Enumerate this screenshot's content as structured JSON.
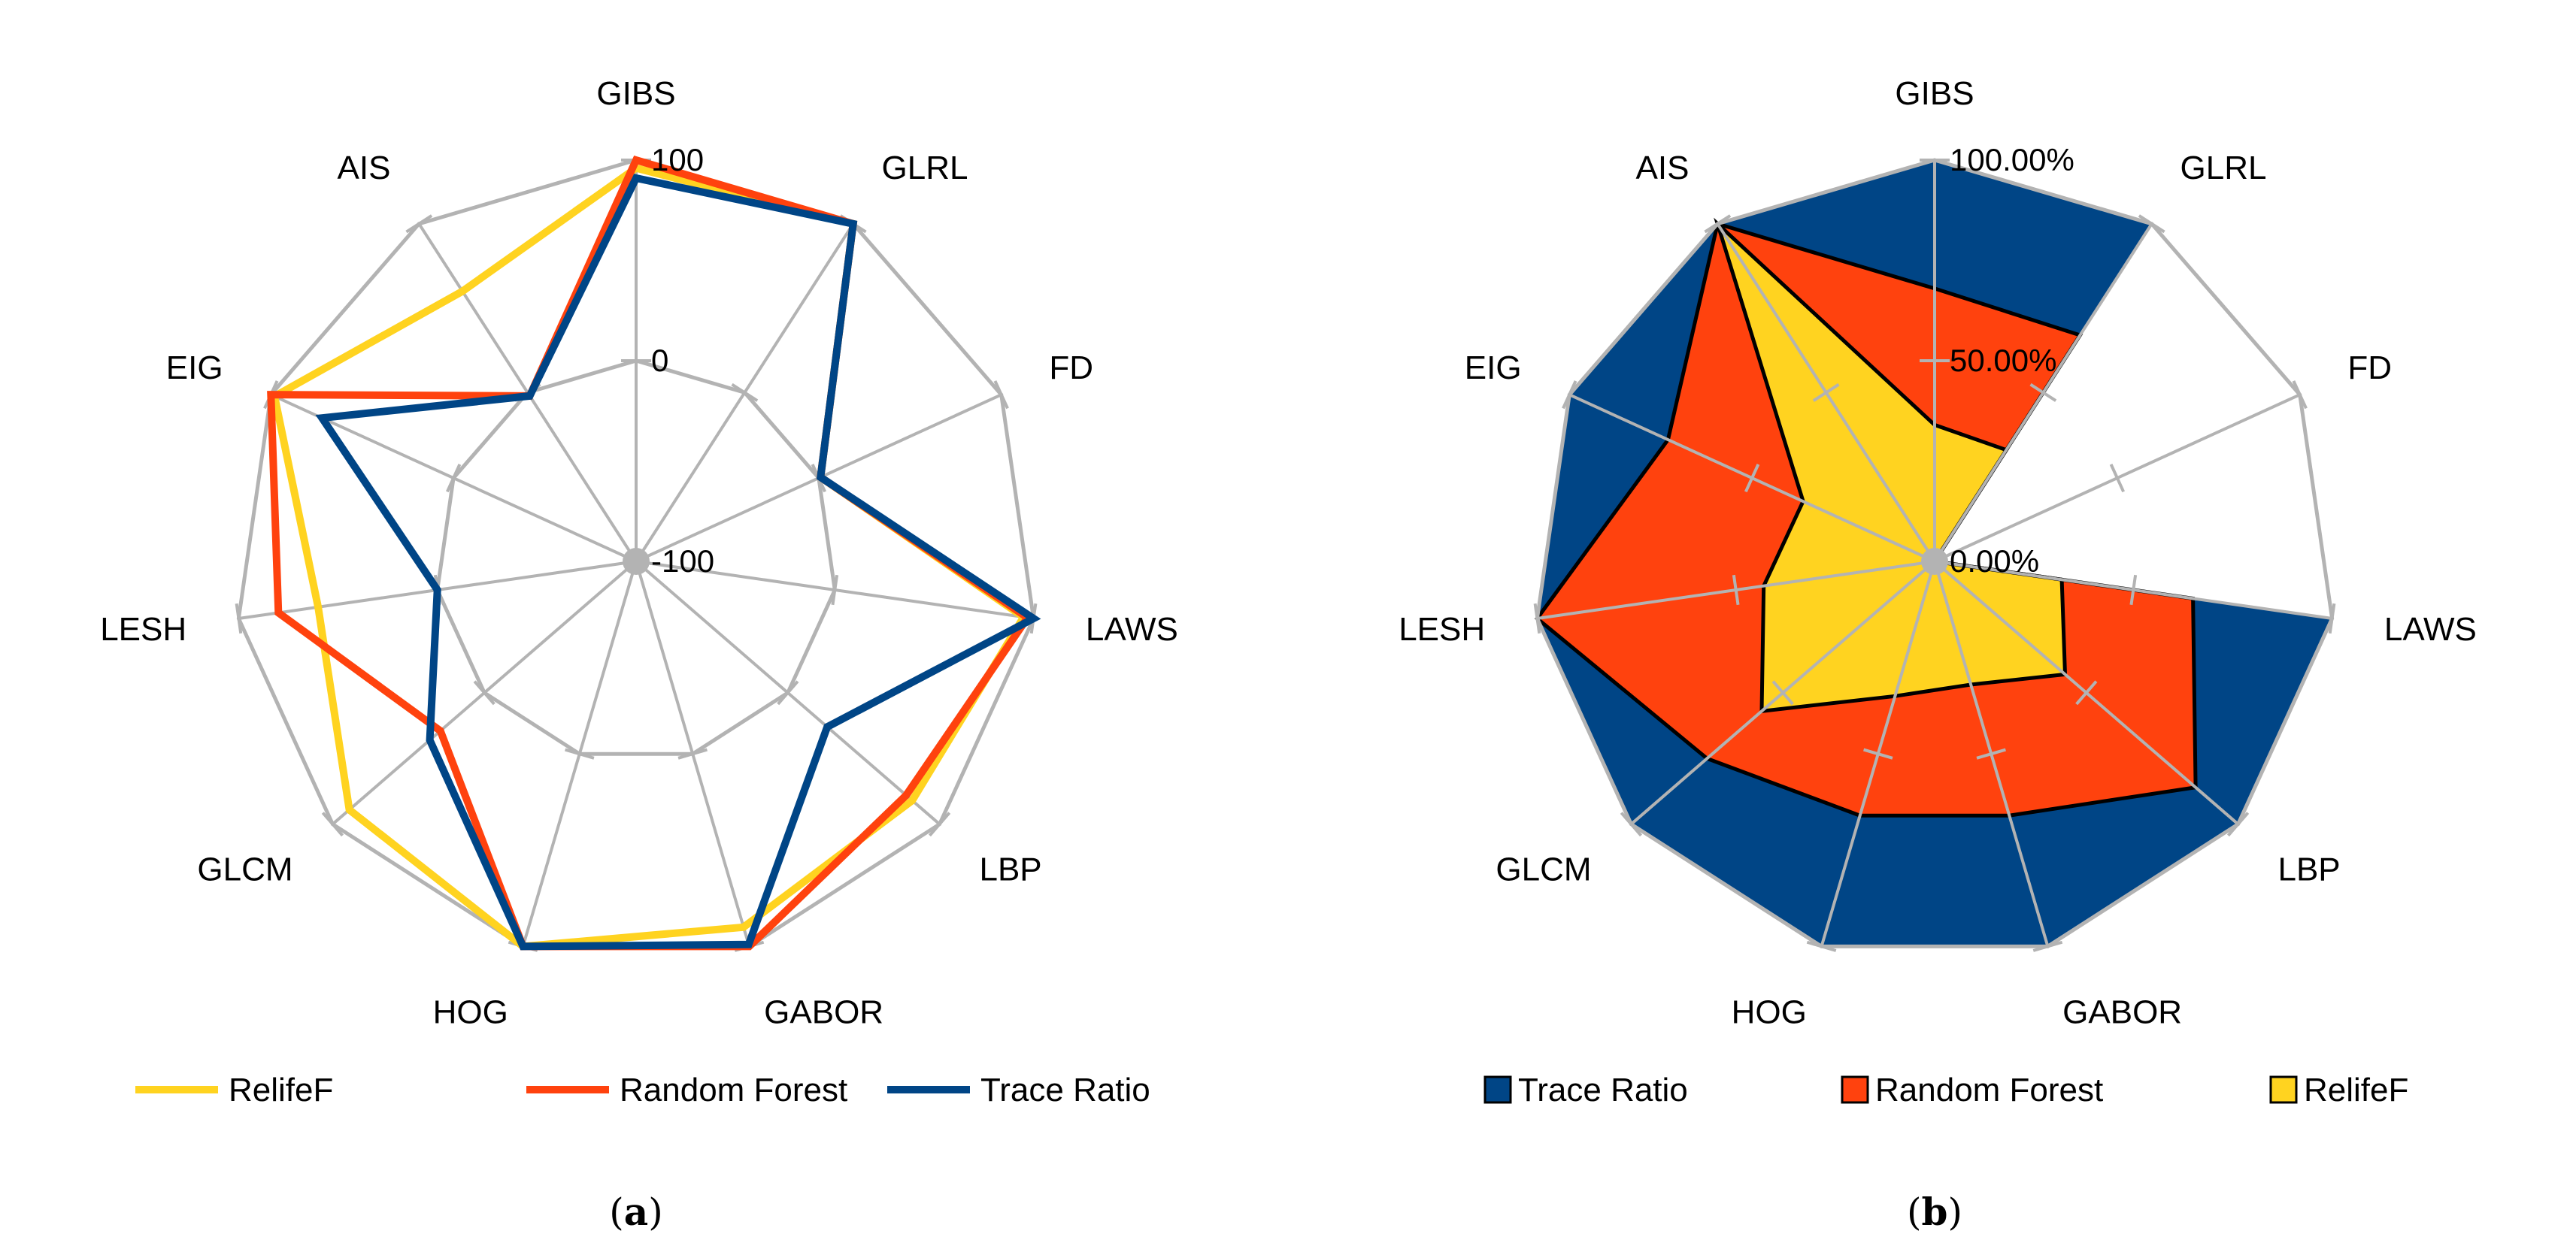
{
  "chart_data": [
    {
      "type": "radar",
      "caption_letter": "a",
      "caption_open": "(",
      "caption_close": ")",
      "style": "lines",
      "categories": [
        "GIBS",
        "GLRL",
        "FD",
        "LAWS",
        "LBP",
        "GABOR",
        "HOG",
        "GLCM",
        "LESH",
        "EIG",
        "AIS"
      ],
      "range": [
        -100,
        100
      ],
      "ticks": [
        {
          "value": 100,
          "label": "100"
        },
        {
          "value": 0,
          "label": "0"
        },
        {
          "value": -100,
          "label": "-100"
        }
      ],
      "series": [
        {
          "name": "RelifeF",
          "color": "#FFD320",
          "values": [
            96,
            100,
            1,
            95,
            82,
            90,
            100,
            89,
            60,
            98,
            60
          ]
        },
        {
          "name": "Random Forest",
          "color": "#FF420E",
          "values": [
            100,
            100,
            1,
            97,
            78,
            100,
            100,
            29,
            80,
            100,
            -2
          ]
        },
        {
          "name": "Trace Ratio",
          "color": "#004586",
          "values": [
            91,
            100,
            1,
            100,
            26,
            99,
            100,
            36,
            0,
            72,
            -2
          ]
        }
      ],
      "legend": [
        "RelifeF",
        "Random Forest",
        "Trace Ratio"
      ],
      "legend_position": "bottom"
    },
    {
      "type": "radar",
      "caption_letter": "b",
      "caption_open": "(",
      "caption_close": ")",
      "style": "filled",
      "categories": [
        "GIBS",
        "GLRL",
        "FD",
        "LAWS",
        "LBP",
        "GABOR",
        "HOG",
        "GLCM",
        "LESH",
        "EIG",
        "AIS"
      ],
      "range": [
        0,
        100
      ],
      "ticks": [
        {
          "value": 100,
          "label": "100.00%"
        },
        {
          "value": 50,
          "label": "50.00%"
        },
        {
          "value": 0,
          "label": "0.00%"
        }
      ],
      "series": [
        {
          "name": "Trace Ratio",
          "color": "#004586",
          "values": [
            100,
            100,
            0,
            100,
            100,
            100,
            100,
            100,
            100,
            100,
            100
          ]
        },
        {
          "name": "Random Forest",
          "color": "#FF420E",
          "values": [
            68,
            67,
            0,
            65,
            86,
            66,
            66,
            75,
            100,
            73,
            100
          ]
        },
        {
          "name": "RelifeF",
          "color": "#FFD320",
          "values": [
            34,
            33,
            0,
            32,
            43,
            32,
            35,
            57,
            43,
            36,
            100
          ]
        }
      ],
      "legend": [
        "Trace Ratio",
        "Random Forest",
        "RelifeF"
      ],
      "legend_position": "bottom"
    }
  ]
}
